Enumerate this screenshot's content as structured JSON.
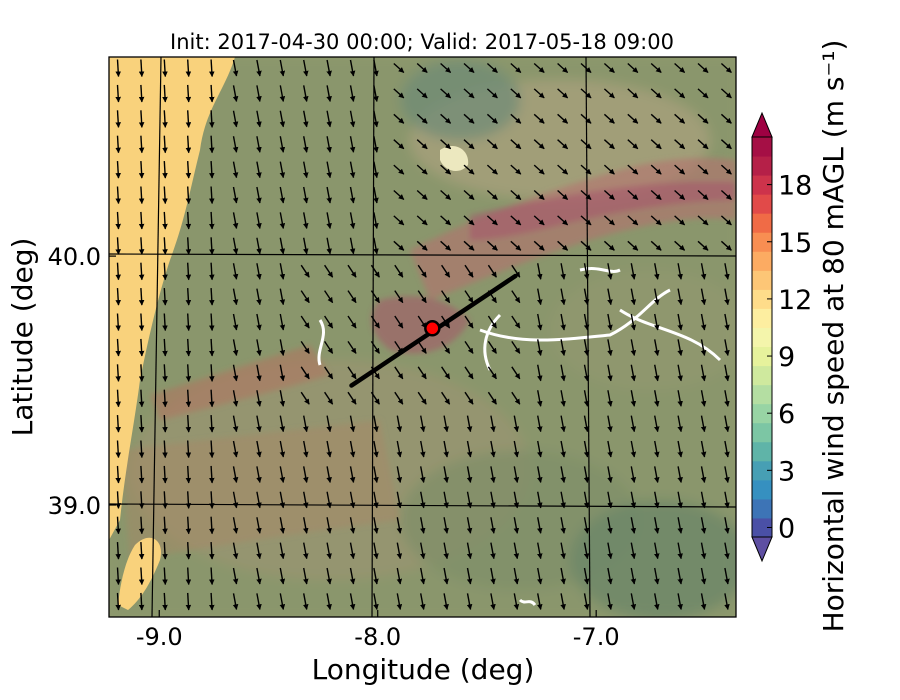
{
  "title": "Init: 2017-04-30 00:00; Valid: 2017-05-18 09:00",
  "x_axis": {
    "label": "Longitude (deg)",
    "range": [
      -9.23,
      -6.36
    ],
    "ticks": [
      -9.0,
      -8.0,
      -7.0
    ],
    "tick_labels": [
      "-9.0",
      "-8.0",
      "-7.0"
    ]
  },
  "y_axis": {
    "label": "Latitude (deg)",
    "range": [
      38.55,
      40.8
    ],
    "ticks": [
      39.0,
      40.0
    ],
    "tick_labels": [
      "39.0",
      "40.0"
    ]
  },
  "colorbar": {
    "label": "Horizontal wind speed at 80 mAGL (m s⁻¹)",
    "min": 0,
    "max": 20,
    "step": 1,
    "tick_values": [
      0,
      3,
      6,
      9,
      12,
      15,
      18
    ],
    "tick_labels": [
      "0",
      "3",
      "6",
      "9",
      "12",
      "15",
      "18"
    ],
    "extend": "both",
    "colors": [
      "#4a50a6",
      "#3d74b6",
      "#3690c0",
      "#479fb4",
      "#5fb4a8",
      "#7cc6a4",
      "#98d4a4",
      "#b4dea2",
      "#cfe99e",
      "#e6f29c",
      "#f4f5ab",
      "#fdeea0",
      "#fedc8a",
      "#fdc676",
      "#fcab62",
      "#f88e52",
      "#f06b46",
      "#e14a49",
      "#cd334b",
      "#b52048",
      "#a50f45"
    ]
  },
  "marker": {
    "lon": -7.75,
    "lat": 39.71,
    "color": "#ff0000"
  },
  "transect": {
    "start": [
      -8.12,
      39.48
    ],
    "end": [
      -7.37,
      39.92
    ],
    "color": "#000000"
  },
  "wind_field": {
    "prevailing_direction": "north-northwest",
    "arrow_color": "#000000"
  }
}
